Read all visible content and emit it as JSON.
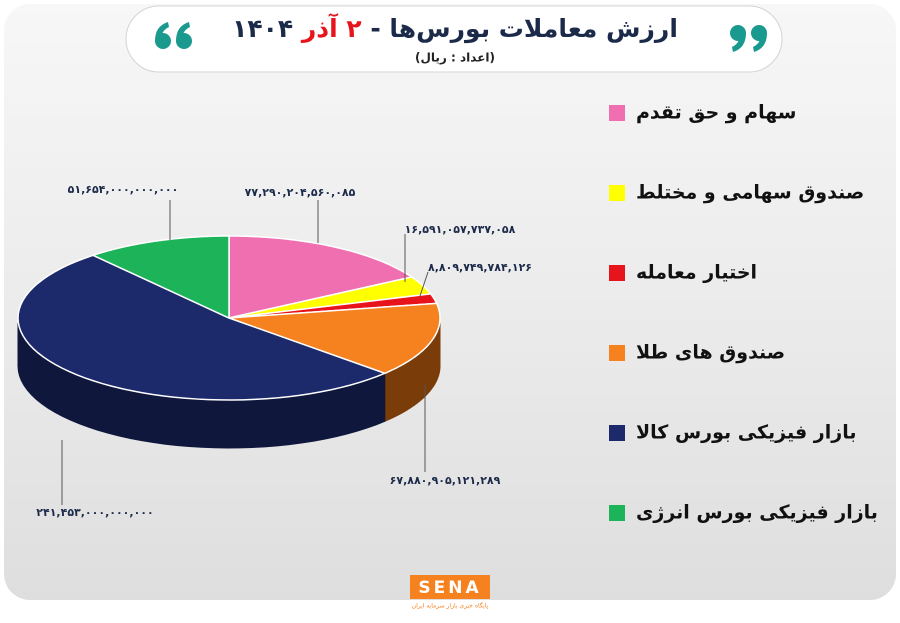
{
  "chart_data": {
    "type": "pie",
    "title": [
      "ارزش معاملات بورس‌ها -",
      "۲ آذر",
      "۱۴۰۴"
    ],
    "subtitle": "(اعداد : ریال)",
    "categories": [
      "سهام و حق تقدم",
      "صندوق سهامی و مختلط",
      "اختیار معامله",
      "صندوق های طلا",
      "بازار فیزیکی بورس کالا",
      "بازار فیزیکی بورس انرژی"
    ],
    "values": [
      77290204560085,
      16591057737058,
      8809749784126,
      67880905121289,
      241453000000000,
      51654000000000
    ],
    "value_labels": [
      "۷۷,۲۹۰,۲۰۴,۵۶۰,۰۸۵",
      "۱۶,۵۹۱,۰۵۷,۷۳۷,۰۵۸",
      "۸,۸۰۹,۷۴۹,۷۸۴,۱۲۶",
      "۶۷,۸۸۰,۹۰۵,۱۲۱,۲۸۹",
      "۲۴۱,۴۵۳,۰۰۰,۰۰۰,۰۰۰",
      "۵۱,۶۵۴,۰۰۰,۰۰۰,۰۰۰"
    ],
    "colors": [
      "#f06fb0",
      "#ffff00",
      "#e8141b",
      "#f5821f",
      "#1c2a6b",
      "#1db359"
    ],
    "side_colors": [
      "#b04a80",
      "#b8b800",
      "#9a0c10",
      "#7a3c08",
      "#0f173d",
      "#10743a"
    ],
    "logo": "SENA",
    "logo_caption": "پایگاه خبری بازار سرمایه ایران"
  }
}
